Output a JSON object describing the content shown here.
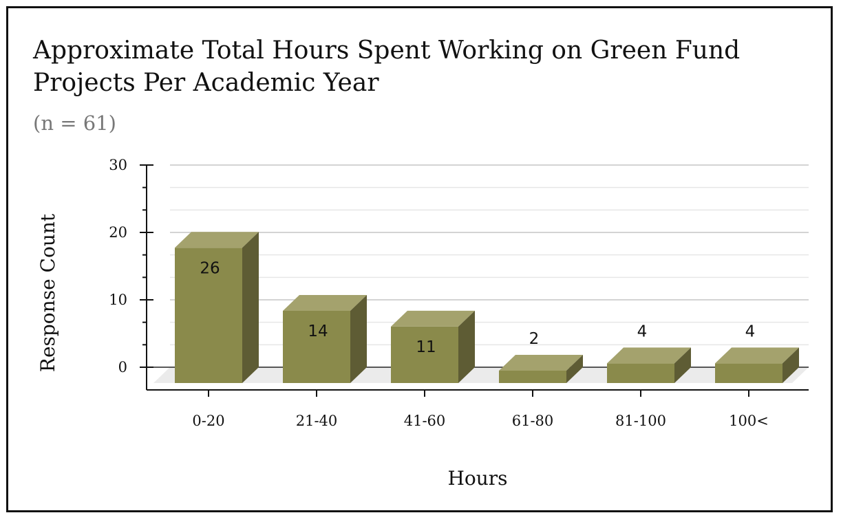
{
  "chart_data": {
    "type": "bar",
    "title": "Approximate Total Hours Spent Working on Green Fund Projects Per Academic Year",
    "subtitle": "(n = 61)",
    "xlabel": "Hours",
    "ylabel": "Response Count",
    "categories": [
      "0-20",
      "21-40",
      "41-60",
      "61-80",
      "81-100",
      "100<"
    ],
    "values": [
      26,
      14,
      11,
      2,
      4,
      4
    ],
    "ylim": [
      0,
      30
    ],
    "yticks": [
      "0",
      "10",
      "20",
      "30"
    ],
    "grid": true,
    "legend": "none",
    "three_d": true,
    "colors": {
      "bar_front": "#8A8A4B",
      "bar_top": "#A4A26D",
      "bar_side": "#5E5C34",
      "floor": "#EBEBEB",
      "grid": "#DADADA"
    }
  }
}
